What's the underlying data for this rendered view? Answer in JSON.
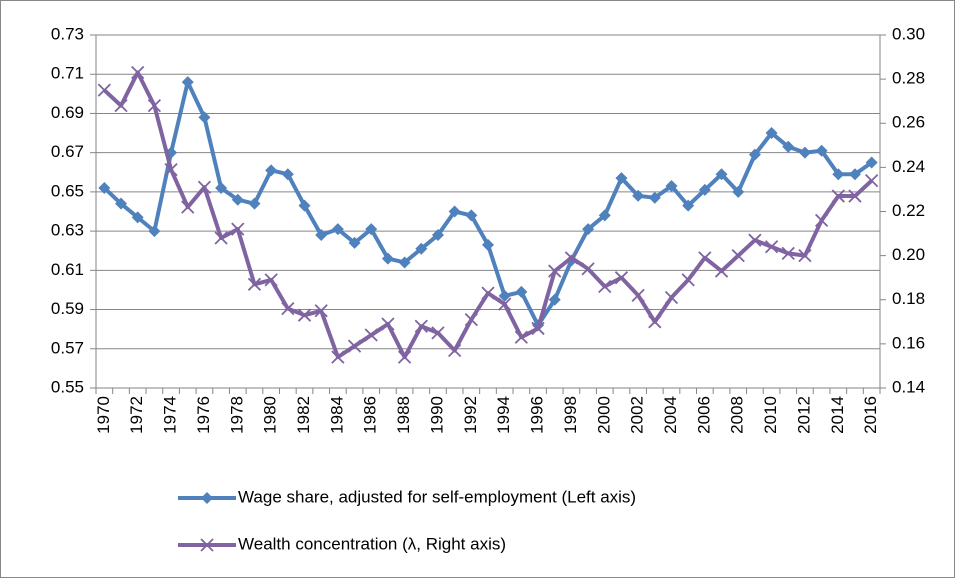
{
  "chart_data": {
    "type": "line",
    "categories": [
      "1970",
      null,
      "1972",
      null,
      "1974",
      null,
      "1976",
      null,
      "1978",
      null,
      "1980",
      null,
      "1982",
      null,
      "1984",
      null,
      "1986",
      null,
      "1988",
      null,
      "1990",
      null,
      "1992",
      null,
      "1994",
      null,
      "1996",
      null,
      "1998",
      null,
      "2000",
      null,
      "2002",
      null,
      "2004",
      null,
      "2006",
      null,
      "2008",
      null,
      "2010",
      null,
      "2012",
      null,
      "2014",
      null,
      "2016"
    ],
    "series": [
      {
        "name": "Wage share, adjusted for self-employment (Left axis)",
        "color": "#4f81bd",
        "marker": "diamond",
        "axis": "y",
        "values": [
          0.652,
          0.644,
          0.637,
          0.63,
          0.67,
          0.706,
          0.688,
          0.652,
          0.646,
          0.644,
          0.661,
          0.659,
          0.643,
          0.628,
          0.631,
          0.624,
          0.631,
          0.616,
          0.614,
          0.621,
          0.628,
          0.64,
          0.638,
          0.623,
          0.597,
          0.599,
          0.582,
          0.595,
          0.615,
          0.631,
          0.638,
          0.657,
          0.648,
          0.647,
          0.653,
          0.643,
          0.651,
          0.659,
          0.65,
          0.669,
          0.68,
          0.673,
          0.67,
          0.671,
          0.659,
          0.659,
          0.665
        ]
      },
      {
        "name": "Wealth concentration (λ, Right axis)",
        "color": "#8064a2",
        "marker": "x",
        "axis": "y2",
        "values": [
          0.275,
          0.268,
          0.283,
          0.268,
          0.239,
          0.222,
          0.231,
          0.208,
          0.212,
          0.187,
          0.189,
          0.176,
          0.173,
          0.175,
          0.154,
          0.159,
          0.164,
          0.169,
          0.154,
          0.168,
          0.165,
          0.157,
          0.171,
          0.183,
          0.178,
          0.163,
          0.167,
          0.193,
          0.199,
          0.194,
          0.186,
          0.19,
          0.182,
          0.17,
          0.181,
          0.189,
          0.199,
          0.193,
          0.2,
          0.207,
          0.204,
          0.201,
          0.2,
          0.216,
          0.227,
          0.227,
          0.234
        ]
      }
    ],
    "ylim": [
      0.55,
      0.73
    ],
    "yticks": [
      0.55,
      0.57,
      0.59,
      0.61,
      0.63,
      0.65,
      0.67,
      0.69,
      0.71,
      0.73
    ],
    "y2lim": [
      0.14,
      0.3
    ],
    "y2ticks": [
      0.14,
      0.16,
      0.18,
      {
        "value": 0.2,
        "label": "0.20"
      },
      0.22,
      0.24,
      0.26,
      0.28,
      {
        "value": 0.3,
        "label": "0.30"
      }
    ],
    "grid": true,
    "legend": "bottom"
  }
}
